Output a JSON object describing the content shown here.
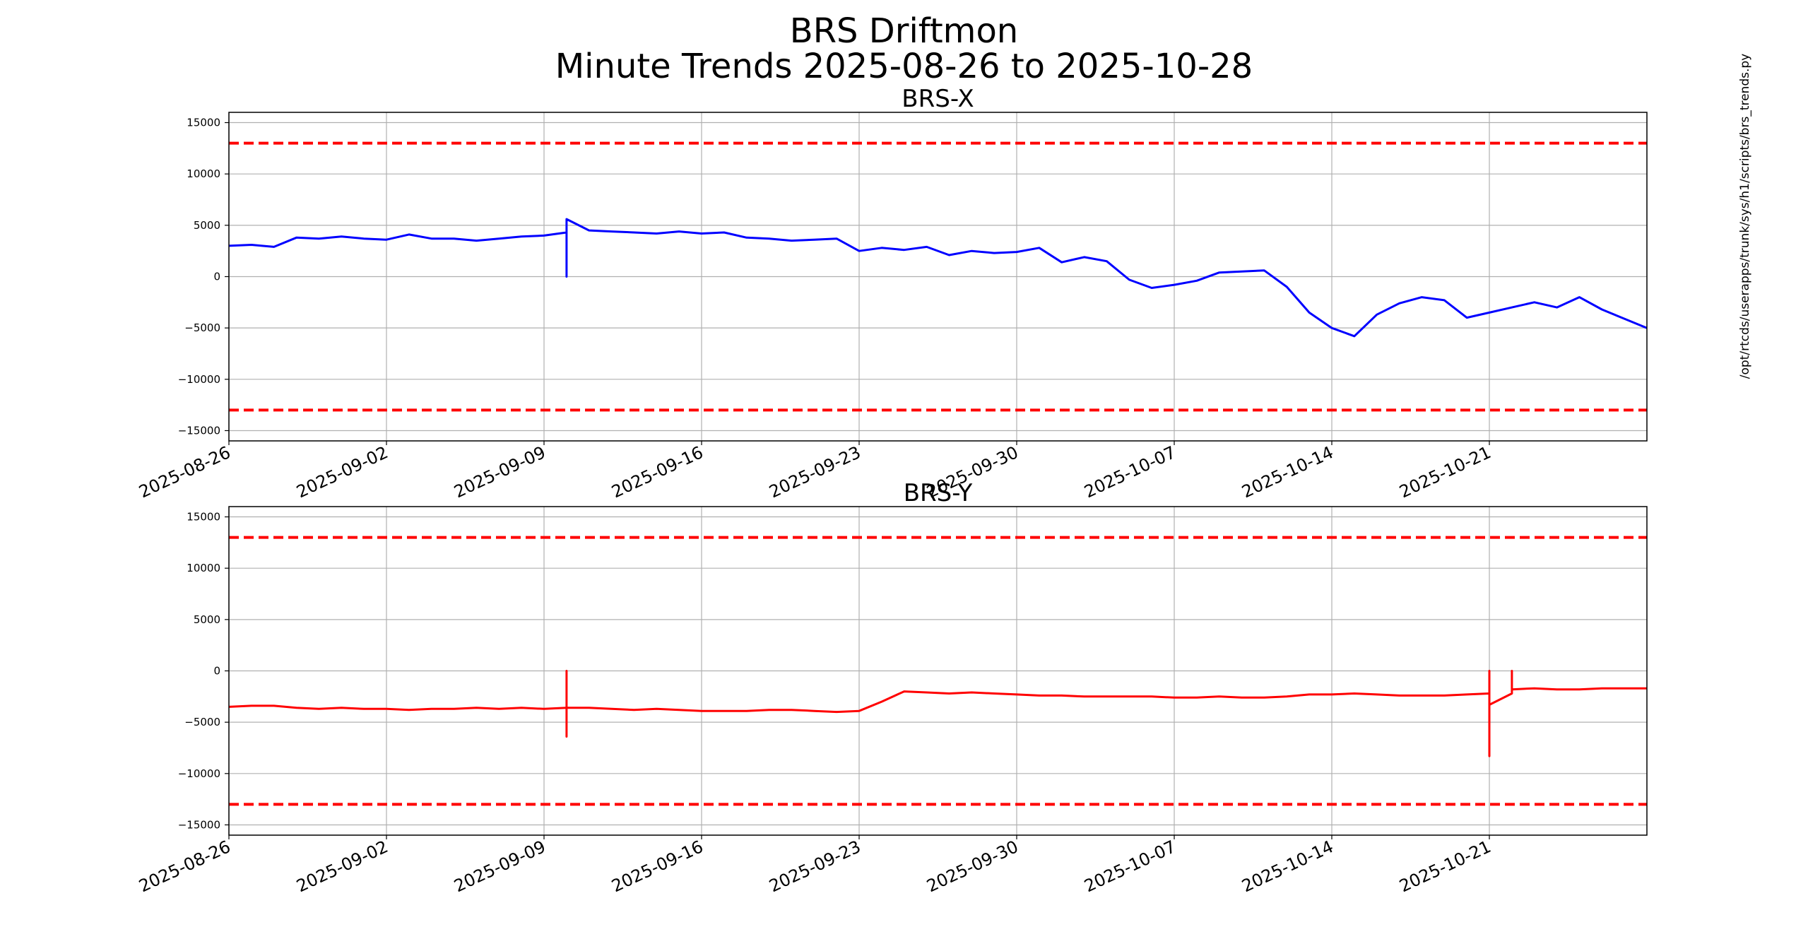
{
  "figure": {
    "title_line1": "BRS Driftmon",
    "title_line2": "Minute Trends 2025-08-26  to 2025-10-28",
    "side_label": "/opt/rtcds/userapps/trunk/sys/h1/scripts/brs_trends.py"
  },
  "chart_data": [
    {
      "type": "line",
      "title": "BRS-X",
      "xlim": [
        "2025-08-26",
        "2025-10-28"
      ],
      "ylim": [
        -16000,
        16000
      ],
      "x_ticks": [
        "2025-08-26",
        "2025-09-02",
        "2025-09-09",
        "2025-09-16",
        "2025-09-23",
        "2025-09-30",
        "2025-10-07",
        "2025-10-14",
        "2025-10-21"
      ],
      "y_ticks": [
        15000,
        10000,
        5000,
        0,
        -5000,
        -10000,
        -15000
      ],
      "grid": true,
      "thresholds": [
        13000,
        -13000
      ],
      "threshold_color": "#ff0000",
      "series_color": "#0000ff",
      "series": [
        {
          "x": [
            "2025-08-26",
            "2025-08-27",
            "2025-08-28",
            "2025-08-29",
            "2025-08-30",
            "2025-08-31",
            "2025-09-01",
            "2025-09-02",
            "2025-09-03",
            "2025-09-04",
            "2025-09-05",
            "2025-09-06",
            "2025-09-07",
            "2025-09-08",
            "2025-09-09",
            "2025-09-10",
            "2025-09-10",
            "2025-09-10",
            "2025-09-11",
            "2025-09-12",
            "2025-09-13",
            "2025-09-14",
            "2025-09-15",
            "2025-09-16",
            "2025-09-17",
            "2025-09-18",
            "2025-09-19",
            "2025-09-20",
            "2025-09-21",
            "2025-09-22",
            "2025-09-23",
            "2025-09-24",
            "2025-09-25",
            "2025-09-26",
            "2025-09-27",
            "2025-09-28",
            "2025-09-29",
            "2025-09-30",
            "2025-10-01",
            "2025-10-02",
            "2025-10-03",
            "2025-10-04",
            "2025-10-05",
            "2025-10-06",
            "2025-10-07",
            "2025-10-08",
            "2025-10-09",
            "2025-10-10",
            "2025-10-11",
            "2025-10-12",
            "2025-10-13",
            "2025-10-14",
            "2025-10-15",
            "2025-10-16",
            "2025-10-17",
            "2025-10-18",
            "2025-10-19",
            "2025-10-20",
            "2025-10-21",
            "2025-10-22",
            "2025-10-23",
            "2025-10-24",
            "2025-10-25",
            "2025-10-26",
            "2025-10-27",
            "2025-10-28"
          ],
          "values": [
            3000,
            3100,
            2900,
            3800,
            3700,
            3900,
            3700,
            3600,
            4100,
            3700,
            3700,
            3500,
            3700,
            3900,
            4000,
            4300,
            0,
            5600,
            4500,
            4400,
            4300,
            4200,
            4400,
            4200,
            4300,
            3800,
            3700,
            3500,
            3600,
            3700,
            2500,
            2800,
            2600,
            2900,
            2100,
            2500,
            2300,
            2400,
            2800,
            1400,
            1900,
            1500,
            -300,
            -1100,
            -800,
            -400,
            400,
            500,
            600,
            -1000,
            -3500,
            -5000,
            -5800,
            -3700,
            -2600,
            -2000,
            -2300,
            -4000,
            -3500,
            -3000,
            -2500,
            -3000,
            -2000,
            -3200,
            -4100,
            -5000
          ]
        }
      ]
    },
    {
      "type": "line",
      "title": "BRS-Y",
      "xlim": [
        "2025-08-26",
        "2025-10-28"
      ],
      "ylim": [
        -16000,
        16000
      ],
      "x_ticks": [
        "2025-08-26",
        "2025-09-02",
        "2025-09-09",
        "2025-09-16",
        "2025-09-23",
        "2025-09-30",
        "2025-10-07",
        "2025-10-14",
        "2025-10-21"
      ],
      "y_ticks": [
        15000,
        10000,
        5000,
        0,
        -5000,
        -10000,
        -15000
      ],
      "grid": true,
      "thresholds": [
        13000,
        -13000
      ],
      "threshold_color": "#ff0000",
      "series_color": "#ff0000",
      "series": [
        {
          "x": [
            "2025-08-26",
            "2025-08-27",
            "2025-08-28",
            "2025-08-29",
            "2025-08-30",
            "2025-08-31",
            "2025-09-01",
            "2025-09-02",
            "2025-09-03",
            "2025-09-04",
            "2025-09-05",
            "2025-09-06",
            "2025-09-07",
            "2025-09-08",
            "2025-09-09",
            "2025-09-10",
            "2025-09-10",
            "2025-09-10",
            "2025-09-10",
            "2025-09-11",
            "2025-09-12",
            "2025-09-13",
            "2025-09-14",
            "2025-09-15",
            "2025-09-16",
            "2025-09-17",
            "2025-09-18",
            "2025-09-19",
            "2025-09-20",
            "2025-09-21",
            "2025-09-22",
            "2025-09-23",
            "2025-09-24",
            "2025-09-25",
            "2025-09-26",
            "2025-09-27",
            "2025-09-28",
            "2025-09-29",
            "2025-09-30",
            "2025-10-01",
            "2025-10-02",
            "2025-10-03",
            "2025-10-04",
            "2025-10-05",
            "2025-10-06",
            "2025-10-07",
            "2025-10-08",
            "2025-10-09",
            "2025-10-10",
            "2025-10-11",
            "2025-10-12",
            "2025-10-13",
            "2025-10-14",
            "2025-10-15",
            "2025-10-16",
            "2025-10-17",
            "2025-10-18",
            "2025-10-19",
            "2025-10-20",
            "2025-10-21",
            "2025-10-21",
            "2025-10-21",
            "2025-10-21",
            "2025-10-22",
            "2025-10-22",
            "2025-10-22",
            "2025-10-23",
            "2025-10-24",
            "2025-10-25",
            "2025-10-26",
            "2025-10-27",
            "2025-10-28"
          ],
          "values": [
            -3500,
            -3400,
            -3400,
            -3600,
            -3700,
            -3600,
            -3700,
            -3700,
            -3800,
            -3700,
            -3700,
            -3600,
            -3700,
            -3600,
            -3700,
            -3600,
            0,
            -6400,
            -3600,
            -3600,
            -3700,
            -3800,
            -3700,
            -3800,
            -3900,
            -3900,
            -3900,
            -3800,
            -3800,
            -3900,
            -4000,
            -3900,
            -3000,
            -2000,
            -2100,
            -2200,
            -2100,
            -2200,
            -2300,
            -2400,
            -2400,
            -2500,
            -2500,
            -2500,
            -2500,
            -2600,
            -2600,
            -2500,
            -2600,
            -2600,
            -2500,
            -2300,
            -2300,
            -2200,
            -2300,
            -2400,
            -2400,
            -2400,
            -2300,
            -2200,
            0,
            -8300,
            -3300,
            -2200,
            0,
            -1800,
            -1700,
            -1800,
            -1800,
            -1700,
            -1700,
            -1700
          ]
        }
      ]
    }
  ]
}
